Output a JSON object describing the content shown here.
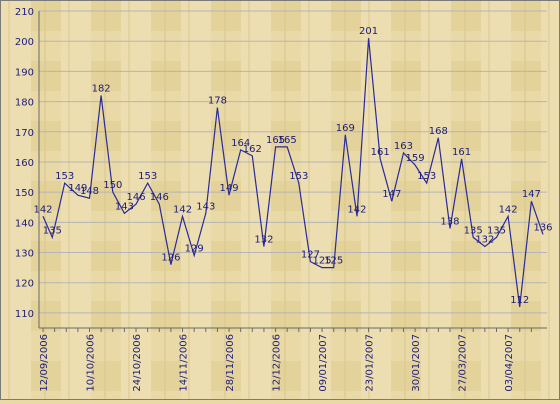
{
  "chart_data": {
    "type": "line",
    "title": "",
    "xlabel": "",
    "ylabel": "",
    "ylim": [
      105,
      210
    ],
    "yticks": [
      110,
      120,
      130,
      140,
      150,
      160,
      170,
      180,
      190,
      200,
      210
    ],
    "grid": true,
    "colors": {
      "line": "#2a2a9a",
      "label": "#1c1c7a",
      "grid": "#b5b5b5",
      "background": "#e8d9a6"
    },
    "xtick_labels": [
      "12/09/2006",
      "10/10/2006",
      "24/10/2006",
      "14/11/2006",
      "28/11/2006",
      "12/12/2006",
      "09/01/2007",
      "23/01/2007",
      "30/01/2007",
      "27/03/2007",
      "03/04/2007"
    ],
    "xtick_positions": [
      0,
      6,
      12,
      18,
      24,
      30,
      36,
      42,
      48,
      54,
      60
    ],
    "series": [
      {
        "values": [
          142,
          135,
          153,
          149,
          148,
          182,
          150,
          143,
          146,
          153,
          146,
          126,
          142,
          129,
          143,
          178,
          149,
          164,
          162,
          132,
          165,
          165,
          153,
          127,
          125,
          125,
          169,
          142,
          201,
          161,
          147,
          163,
          159,
          153,
          168,
          138,
          161,
          135,
          132,
          135,
          142,
          112,
          147,
          136
        ],
        "x": [
          0,
          1.2,
          2.8,
          4.5,
          6,
          7.5,
          9,
          10.5,
          12,
          13.5,
          15,
          16.5,
          18,
          19.5,
          21,
          22.5,
          24,
          25.5,
          27,
          28.5,
          30,
          31.5,
          33,
          34.5,
          36,
          37.5,
          39,
          40.5,
          42,
          43.5,
          45,
          46.5,
          48,
          49.5,
          51,
          52.5,
          54,
          55.5,
          57,
          58.5,
          60,
          61.5,
          63,
          64.5
        ]
      }
    ]
  }
}
